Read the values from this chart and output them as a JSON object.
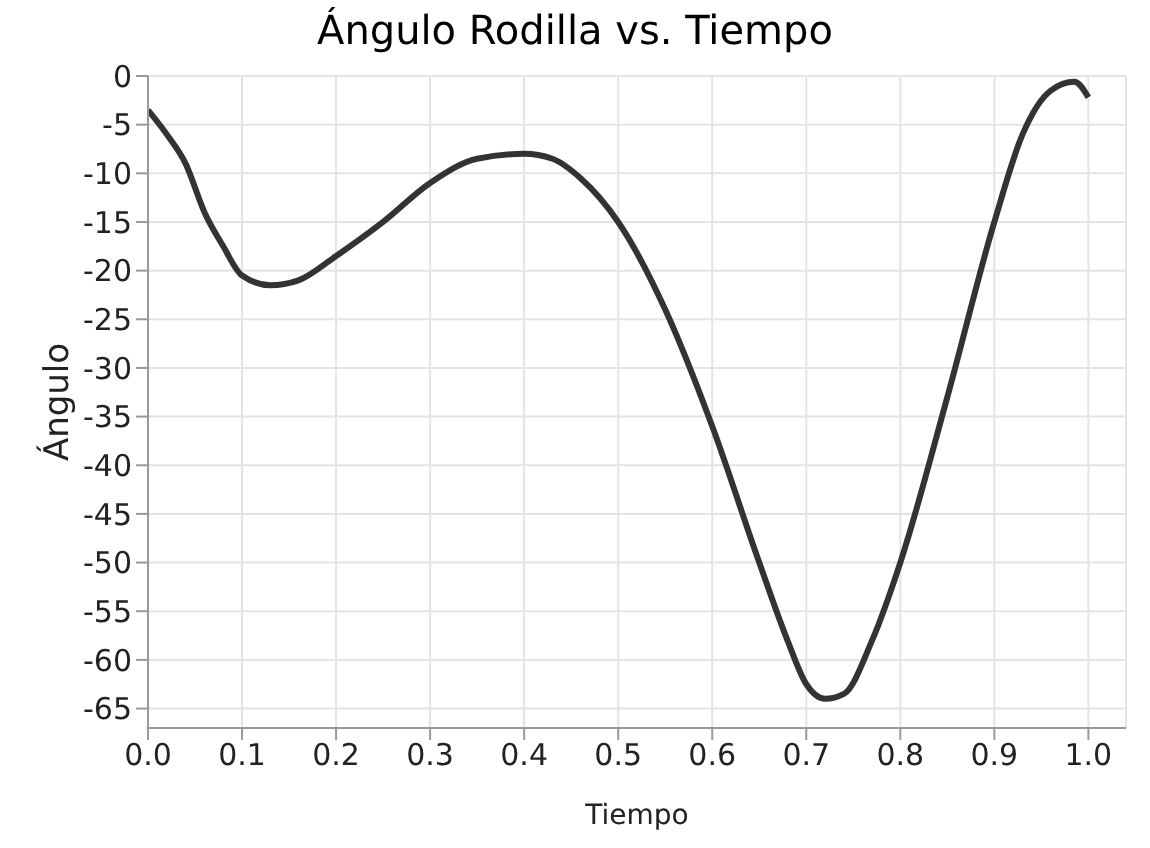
{
  "chart_data": {
    "type": "line",
    "title": "Ángulo Rodilla vs. Tiempo",
    "xlabel": "Tiempo",
    "ylabel": "Ángulo",
    "x": [
      0,
      0.02,
      0.04,
      0.06,
      0.08,
      0.1,
      0.13,
      0.16,
      0.2,
      0.25,
      0.3,
      0.35,
      0.4,
      0.43,
      0.46,
      0.5,
      0.55,
      0.6,
      0.65,
      0.68,
      0.7,
      0.72,
      0.74,
      0.77,
      0.8,
      0.85,
      0.9,
      0.93,
      0.96,
      0.985,
      1.0
    ],
    "series": [
      {
        "color": "#333333",
        "values": [
          -3.5,
          -6,
          -9,
          -14,
          -17.5,
          -20.5,
          -21.5,
          -21,
          -18.5,
          -15,
          -11,
          -8.5,
          -8,
          -8.5,
          -10.5,
          -15,
          -24,
          -36,
          -50,
          -58,
          -62.5,
          -64,
          -63.5,
          -58,
          -50,
          -33,
          -15,
          -6,
          -1.5,
          -0.6,
          -2.2
        ]
      }
    ],
    "xlim": [
      0,
      1.04
    ],
    "xticks": [
      {
        "value": 0,
        "label": "0.0"
      },
      0.1,
      0.2,
      0.3,
      0.4,
      0.5,
      0.6,
      0.7,
      0.8,
      0.9,
      {
        "value": 1,
        "label": "1.0"
      }
    ],
    "ylim": [
      -67,
      0
    ],
    "yticks": [
      0,
      -5,
      -10,
      -15,
      -20,
      -25,
      -30,
      -35,
      -40,
      -45,
      -50,
      -55,
      -60,
      -65
    ],
    "grid": true,
    "marker": "none",
    "line_style": "solid"
  }
}
